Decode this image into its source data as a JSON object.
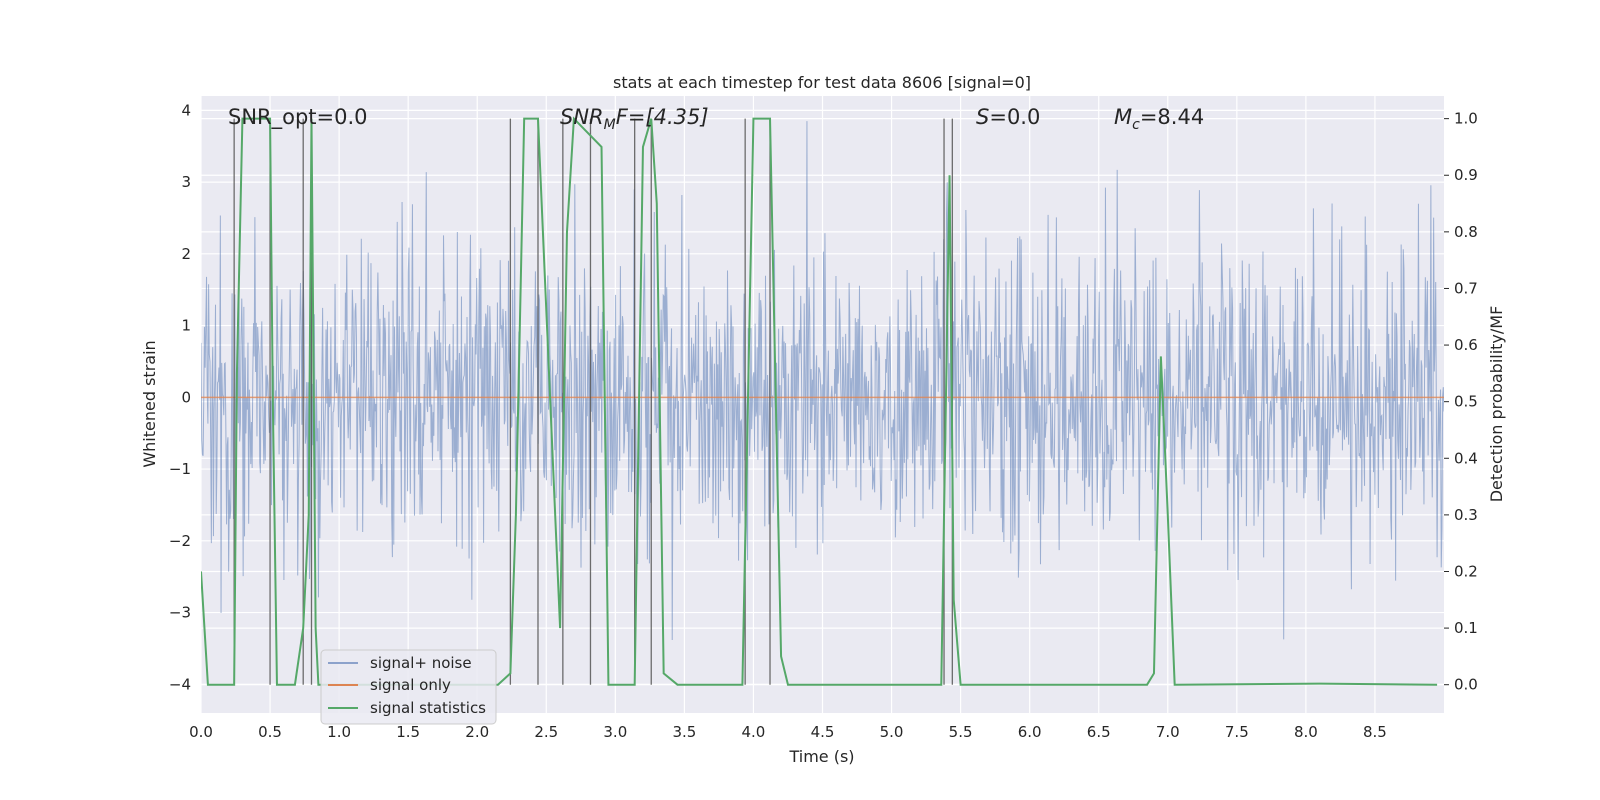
{
  "chart_data": {
    "type": "line",
    "title": "stats at each timestep for test data 8606 [signal=0]",
    "xlabel": "Time (s)",
    "ylabel_left": "Whitened strain",
    "ylabel_right": "Detection probability/MF",
    "xlim": [
      0.0,
      9.0
    ],
    "ylim_left": [
      -4.4,
      4.2
    ],
    "ylim_right": [
      -0.05,
      1.04
    ],
    "x_ticks": [
      "0.0",
      "0.5",
      "1.0",
      "1.5",
      "2.0",
      "2.5",
      "3.0",
      "3.5",
      "4.0",
      "4.5",
      "5.0",
      "5.5",
      "6.0",
      "6.5",
      "7.0",
      "7.5",
      "8.0",
      "8.5"
    ],
    "y_left_ticks": [
      "4",
      "3",
      "2",
      "1",
      "0",
      "−1",
      "−2",
      "−3",
      "−4"
    ],
    "y_right_ticks": [
      "1.0",
      "0.9",
      "0.8",
      "0.7",
      "0.6",
      "0.5",
      "0.4",
      "0.3",
      "0.2",
      "0.1",
      "0.0"
    ],
    "annotations": [
      {
        "text": "SNR_opt=0.0",
        "x": 0.2
      },
      {
        "text": "F=[4.35]",
        "x": 2.6
      },
      {
        "text": "=0.0",
        "x": 5.6
      },
      {
        "text": "=8.44",
        "x": 6.6
      }
    ],
    "annotation_math": {
      "snr_mf_base": "SNR",
      "snr_mf_sub": "M",
      "s_symbol": "S",
      "mc_base": "M",
      "mc_sub": "c"
    },
    "series": [
      {
        "name": "signal+ noise",
        "axis": "left",
        "color": "#4c72b0",
        "note": "whitened strain, noise only, approx. unit variance with spikes to about ±4"
      },
      {
        "name": "signal only",
        "axis": "left",
        "color": "#dd8452",
        "value": 0.0
      },
      {
        "name": "signal statistics",
        "axis": "right",
        "color": "#55a868",
        "x": [
          0.0,
          0.05,
          0.1,
          0.24,
          0.26,
          0.3,
          0.5,
          0.52,
          0.55,
          0.68,
          0.74,
          0.78,
          0.8,
          0.83,
          0.85,
          2.15,
          2.24,
          2.28,
          2.34,
          2.44,
          2.6,
          2.65,
          2.7,
          2.9,
          2.95,
          3.14,
          3.2,
          3.26,
          3.3,
          3.35,
          3.45,
          3.92,
          4.0,
          4.12,
          4.2,
          4.25,
          5.36,
          5.42,
          5.45,
          5.5,
          6.85,
          6.9,
          6.95,
          7.0,
          7.05,
          8.1,
          8.95
        ],
        "y": [
          0.2,
          0.0,
          0.0,
          0.0,
          0.55,
          1.0,
          1.0,
          0.5,
          0.0,
          0.0,
          0.1,
          0.3,
          1.0,
          0.1,
          0.0,
          0.0,
          0.02,
          0.3,
          1.0,
          1.0,
          0.1,
          0.8,
          1.0,
          0.95,
          0.0,
          0.0,
          0.95,
          1.0,
          0.85,
          0.02,
          0.0,
          0.0,
          1.0,
          1.0,
          0.05,
          0.0,
          0.0,
          0.9,
          0.15,
          0.0,
          0.0,
          0.02,
          0.58,
          0.3,
          0.0,
          0.002,
          0.0
        ]
      }
    ],
    "marker_lines_x": [
      0.24,
      0.5,
      0.74,
      0.8,
      2.24,
      2.44,
      2.62,
      2.82,
      3.14,
      3.26,
      3.94,
      4.12,
      5.38,
      5.44
    ],
    "legend": {
      "location": "lower-left",
      "entries": [
        "signal+ noise",
        "signal only",
        "signal statistics"
      ]
    }
  }
}
